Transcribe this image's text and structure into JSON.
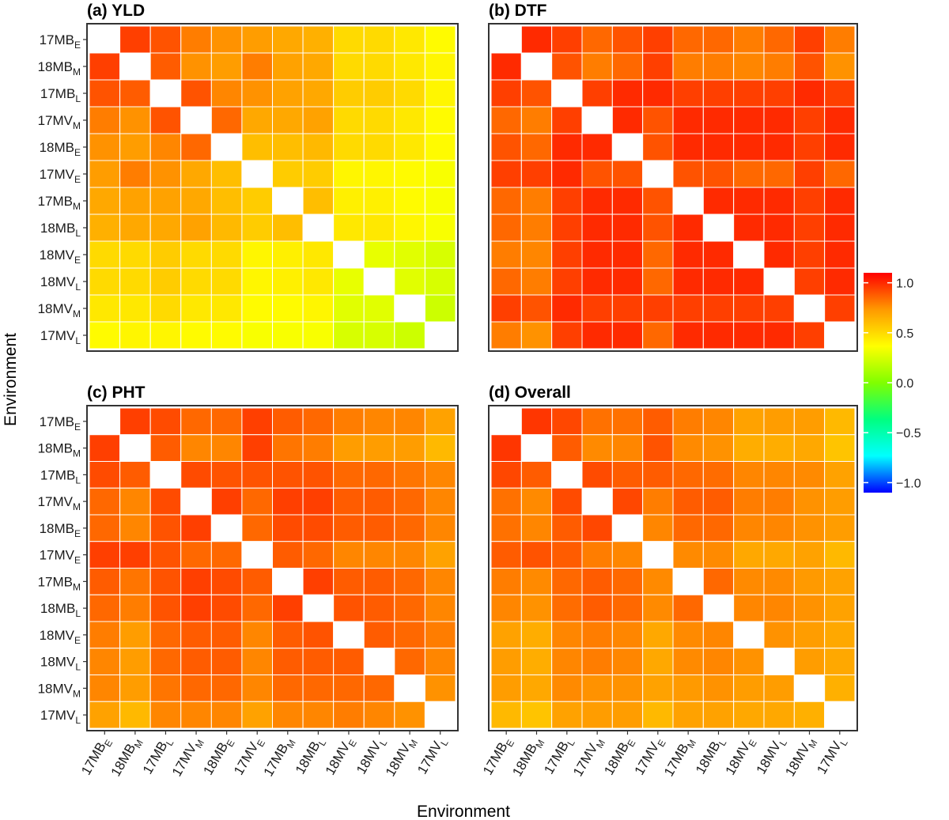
{
  "figure": {
    "xlabel": "Environment",
    "ylabel": "Environment"
  },
  "legend": {
    "ticks": [
      "1.0",
      "0.5",
      "0.0",
      "−0.5",
      "−1.0"
    ],
    "tick_values": [
      1.0,
      0.5,
      0.0,
      -0.5,
      -1.0
    ],
    "range": [
      -1.1,
      1.1
    ],
    "colors": [
      "#0000ff",
      "#00ffff",
      "#00ff80",
      "#80ff00",
      "#ffff00",
      "#ff9900",
      "#ff0000"
    ]
  },
  "environments": [
    {
      "base": "17MB",
      "sub": "E"
    },
    {
      "base": "18MB",
      "sub": "M"
    },
    {
      "base": "17MB",
      "sub": "L"
    },
    {
      "base": "17MV",
      "sub": "M"
    },
    {
      "base": "18MB",
      "sub": "E"
    },
    {
      "base": "17MV",
      "sub": "E"
    },
    {
      "base": "17MB",
      "sub": "M"
    },
    {
      "base": "18MB",
      "sub": "L"
    },
    {
      "base": "18MV",
      "sub": "E"
    },
    {
      "base": "18MV",
      "sub": "L"
    },
    {
      "base": "18MV",
      "sub": "M"
    },
    {
      "base": "17MV",
      "sub": "L"
    }
  ],
  "chart_data": [
    {
      "type": "heatmap",
      "title": "(a) YLD",
      "matrix": [
        [
          null,
          0.95,
          0.9,
          0.8,
          0.75,
          0.72,
          0.68,
          0.65,
          0.5,
          0.5,
          0.45,
          0.38
        ],
        [
          0.95,
          null,
          0.88,
          0.75,
          0.72,
          0.8,
          0.7,
          0.68,
          0.5,
          0.5,
          0.45,
          0.4
        ],
        [
          0.9,
          0.88,
          null,
          0.9,
          0.78,
          0.75,
          0.7,
          0.68,
          0.55,
          0.55,
          0.5,
          0.4
        ],
        [
          0.8,
          0.75,
          0.9,
          null,
          0.85,
          0.68,
          0.68,
          0.7,
          0.5,
          0.5,
          0.45,
          0.38
        ],
        [
          0.75,
          0.72,
          0.78,
          0.85,
          null,
          0.6,
          0.6,
          0.62,
          0.5,
          0.5,
          0.45,
          0.38
        ],
        [
          0.72,
          0.8,
          0.75,
          0.68,
          0.6,
          null,
          0.55,
          0.55,
          0.4,
          0.4,
          0.38,
          0.35
        ],
        [
          0.68,
          0.7,
          0.7,
          0.68,
          0.6,
          0.55,
          null,
          0.6,
          0.42,
          0.42,
          0.38,
          0.35
        ],
        [
          0.65,
          0.68,
          0.68,
          0.7,
          0.62,
          0.55,
          0.6,
          null,
          0.45,
          0.45,
          0.4,
          0.35
        ],
        [
          0.5,
          0.5,
          0.55,
          0.5,
          0.5,
          0.4,
          0.42,
          0.45,
          null,
          0.3,
          0.28,
          0.25
        ],
        [
          0.5,
          0.5,
          0.55,
          0.5,
          0.5,
          0.4,
          0.42,
          0.45,
          0.3,
          null,
          0.28,
          0.25
        ],
        [
          0.45,
          0.45,
          0.5,
          0.45,
          0.45,
          0.38,
          0.38,
          0.4,
          0.28,
          0.28,
          null,
          0.22
        ],
        [
          0.38,
          0.4,
          0.4,
          0.38,
          0.38,
          0.35,
          0.35,
          0.35,
          0.25,
          0.25,
          0.22,
          null
        ]
      ]
    },
    {
      "type": "heatmap",
      "title": "(b) DTF",
      "matrix": [
        [
          null,
          1.0,
          0.95,
          0.85,
          0.9,
          0.95,
          0.85,
          0.85,
          0.8,
          0.85,
          0.95,
          0.8
        ],
        [
          1.0,
          null,
          0.9,
          0.8,
          0.85,
          0.95,
          0.8,
          0.8,
          0.78,
          0.8,
          0.9,
          0.75
        ],
        [
          0.95,
          0.9,
          null,
          0.95,
          1.0,
          1.0,
          0.95,
          0.95,
          0.95,
          0.95,
          1.0,
          0.95
        ],
        [
          0.85,
          0.8,
          0.95,
          null,
          1.0,
          0.9,
          1.0,
          1.0,
          1.0,
          1.0,
          0.95,
          1.0
        ],
        [
          0.9,
          0.85,
          1.0,
          1.0,
          null,
          0.9,
          1.0,
          1.0,
          1.0,
          1.0,
          0.95,
          1.0
        ],
        [
          0.95,
          0.95,
          1.0,
          0.9,
          0.9,
          null,
          0.9,
          0.9,
          0.85,
          0.85,
          0.95,
          0.85
        ],
        [
          0.85,
          0.8,
          0.95,
          1.0,
          1.0,
          0.9,
          null,
          1.0,
          1.0,
          1.0,
          0.95,
          1.0
        ],
        [
          0.85,
          0.8,
          0.95,
          1.0,
          1.0,
          0.9,
          1.0,
          null,
          1.0,
          1.0,
          0.95,
          1.0
        ],
        [
          0.8,
          0.78,
          0.95,
          1.0,
          1.0,
          0.85,
          1.0,
          1.0,
          null,
          1.0,
          0.95,
          1.0
        ],
        [
          0.85,
          0.8,
          0.95,
          1.0,
          1.0,
          0.85,
          1.0,
          1.0,
          1.0,
          null,
          0.95,
          1.0
        ],
        [
          0.95,
          0.9,
          1.0,
          0.95,
          0.95,
          0.95,
          0.95,
          0.95,
          0.95,
          0.95,
          null,
          0.95
        ],
        [
          0.8,
          0.75,
          0.95,
          1.0,
          1.0,
          0.85,
          1.0,
          1.0,
          1.0,
          1.0,
          0.95,
          null
        ]
      ]
    },
    {
      "type": "heatmap",
      "title": "(c) PHT",
      "matrix": [
        [
          null,
          0.95,
          0.92,
          0.85,
          0.85,
          0.95,
          0.88,
          0.85,
          0.8,
          0.78,
          0.78,
          0.7
        ],
        [
          0.95,
          null,
          0.88,
          0.78,
          0.78,
          0.95,
          0.82,
          0.8,
          0.72,
          0.72,
          0.72,
          0.62
        ],
        [
          0.92,
          0.88,
          null,
          0.92,
          0.9,
          0.9,
          0.9,
          0.9,
          0.85,
          0.85,
          0.82,
          0.78
        ],
        [
          0.85,
          0.78,
          0.92,
          null,
          0.95,
          0.85,
          0.95,
          0.95,
          0.88,
          0.88,
          0.85,
          0.78
        ],
        [
          0.85,
          0.78,
          0.9,
          0.95,
          null,
          0.85,
          0.92,
          0.92,
          0.88,
          0.88,
          0.85,
          0.78
        ],
        [
          0.95,
          0.95,
          0.9,
          0.85,
          0.85,
          null,
          0.88,
          0.85,
          0.78,
          0.78,
          0.78,
          0.7
        ],
        [
          0.88,
          0.82,
          0.9,
          0.95,
          0.92,
          0.88,
          null,
          0.95,
          0.88,
          0.88,
          0.85,
          0.78
        ],
        [
          0.85,
          0.8,
          0.9,
          0.95,
          0.92,
          0.85,
          0.95,
          null,
          0.9,
          0.88,
          0.85,
          0.78
        ],
        [
          0.8,
          0.72,
          0.85,
          0.88,
          0.88,
          0.78,
          0.88,
          0.9,
          null,
          0.88,
          0.85,
          0.8
        ],
        [
          0.78,
          0.72,
          0.85,
          0.88,
          0.88,
          0.78,
          0.88,
          0.88,
          0.88,
          null,
          0.85,
          0.78
        ],
        [
          0.78,
          0.72,
          0.82,
          0.85,
          0.85,
          0.78,
          0.85,
          0.85,
          0.85,
          0.85,
          null,
          0.75
        ],
        [
          0.7,
          0.62,
          0.78,
          0.78,
          0.78,
          0.7,
          0.78,
          0.78,
          0.8,
          0.78,
          0.75,
          null
        ]
      ]
    },
    {
      "type": "heatmap",
      "title": "(d) Overall",
      "matrix": [
        [
          null,
          0.97,
          0.93,
          0.83,
          0.83,
          0.88,
          0.8,
          0.78,
          0.7,
          0.72,
          0.72,
          0.62
        ],
        [
          0.97,
          null,
          0.88,
          0.77,
          0.78,
          0.9,
          0.77,
          0.75,
          0.66,
          0.66,
          0.68,
          0.58
        ],
        [
          0.93,
          0.88,
          null,
          0.92,
          0.88,
          0.88,
          0.85,
          0.84,
          0.78,
          0.78,
          0.77,
          0.7
        ],
        [
          0.83,
          0.77,
          0.92,
          null,
          0.93,
          0.8,
          0.88,
          0.88,
          0.8,
          0.8,
          0.75,
          0.72
        ],
        [
          0.83,
          0.78,
          0.88,
          0.93,
          null,
          0.78,
          0.85,
          0.85,
          0.78,
          0.78,
          0.75,
          0.72
        ],
        [
          0.88,
          0.9,
          0.88,
          0.8,
          0.78,
          null,
          0.77,
          0.77,
          0.68,
          0.68,
          0.7,
          0.62
        ],
        [
          0.8,
          0.77,
          0.85,
          0.88,
          0.85,
          0.77,
          null,
          0.85,
          0.77,
          0.77,
          0.73,
          0.7
        ],
        [
          0.78,
          0.75,
          0.84,
          0.88,
          0.85,
          0.77,
          0.85,
          null,
          0.78,
          0.78,
          0.75,
          0.7
        ],
        [
          0.7,
          0.66,
          0.78,
          0.8,
          0.78,
          0.68,
          0.77,
          0.78,
          null,
          0.75,
          0.72,
          0.68
        ],
        [
          0.72,
          0.66,
          0.78,
          0.8,
          0.78,
          0.68,
          0.77,
          0.78,
          0.75,
          null,
          0.72,
          0.68
        ],
        [
          0.72,
          0.68,
          0.77,
          0.75,
          0.75,
          0.7,
          0.73,
          0.75,
          0.72,
          0.72,
          null,
          0.65
        ],
        [
          0.62,
          0.58,
          0.7,
          0.72,
          0.72,
          0.62,
          0.7,
          0.7,
          0.68,
          0.68,
          0.65,
          null
        ]
      ]
    }
  ]
}
